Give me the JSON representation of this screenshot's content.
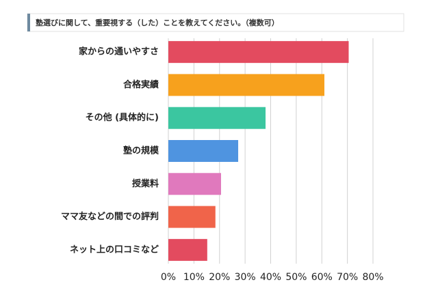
{
  "chart_data": {
    "type": "barh",
    "title": "塾選びに関して、重要視する（した）ことを教えてください。（複数可）",
    "categories": [
      "家からの通いやすさ",
      "合格実績",
      "その他 (具体的に)",
      "塾の規模",
      "授業料",
      "ママ友などの間での評判",
      "ネット上の口コミなど"
    ],
    "values": [
      70.5,
      61,
      38,
      27.3,
      20.6,
      18.4,
      15.2
    ],
    "colors": [
      "#e34b5f",
      "#f7a11d",
      "#3bc6a0",
      "#4f94e0",
      "#e079bd",
      "#f0644a",
      "#e34b5f"
    ],
    "xlim": [
      0,
      80
    ],
    "xticks": [
      {
        "value": 0,
        "label": "0%"
      },
      {
        "value": 10,
        "label": "10%"
      },
      {
        "value": 20,
        "label": "20%"
      },
      {
        "value": 30,
        "label": "30%"
      },
      {
        "value": 40,
        "label": "40%"
      },
      {
        "value": 50,
        "label": "50%"
      },
      {
        "value": 60,
        "label": "60%"
      },
      {
        "value": 70,
        "label": "70%"
      },
      {
        "value": 80,
        "label": "80%"
      }
    ],
    "grid": true
  }
}
